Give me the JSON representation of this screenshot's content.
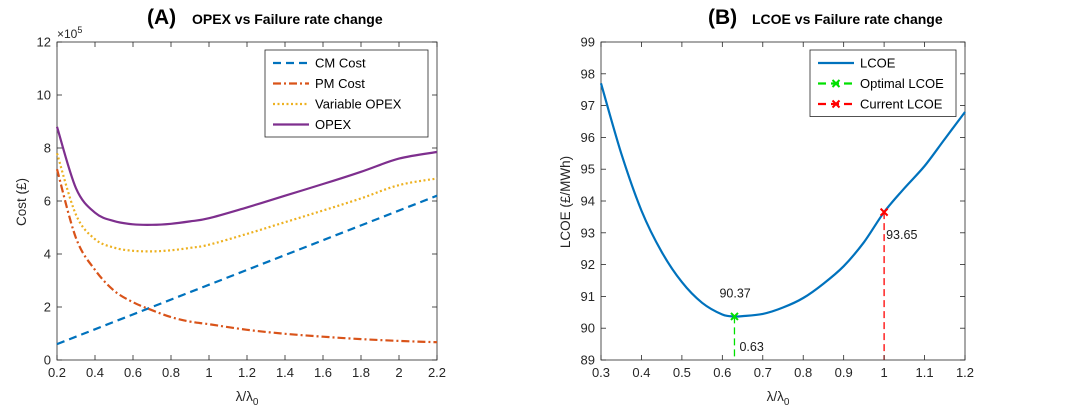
{
  "chart_data": [
    {
      "type": "line",
      "panel_label": "(A)",
      "title": "OPEX vs Failure rate change",
      "xlabel": "λ/λ0",
      "ylabel": "Cost (£)",
      "y_exponent_label": "×10^5",
      "xlim": [
        0.2,
        2.2
      ],
      "ylim": [
        0,
        12
      ],
      "xticks": [
        "0.2",
        "0.4",
        "0.6",
        "0.8",
        "1",
        "1.2",
        "1.4",
        "1.6",
        "1.8",
        "2",
        "2.2"
      ],
      "yticks": [
        "0",
        "2",
        "4",
        "6",
        "8",
        "10",
        "12"
      ],
      "legend_position": "top-right",
      "grid": false,
      "x": [
        0.2,
        0.3,
        0.4,
        0.5,
        0.6,
        0.7,
        0.8,
        0.9,
        1.0,
        1.2,
        1.4,
        1.6,
        1.8,
        2.0,
        2.2
      ],
      "series": [
        {
          "name": "CM Cost",
          "color": "#0072BD",
          "style": "dashed",
          "values": [
            0.6,
            0.88,
            1.16,
            1.44,
            1.72,
            2.0,
            2.28,
            2.56,
            2.84,
            3.4,
            3.96,
            4.52,
            5.08,
            5.64,
            6.2
          ]
        },
        {
          "name": "PM Cost",
          "color": "#D95319",
          "style": "dashdot",
          "values": [
            7.2,
            4.6,
            3.4,
            2.62,
            2.18,
            1.88,
            1.62,
            1.45,
            1.35,
            1.14,
            0.99,
            0.88,
            0.79,
            0.72,
            0.67
          ]
        },
        {
          "name": "Variable OPEX",
          "color": "#EDB120",
          "style": "dotted",
          "values": [
            7.8,
            5.48,
            4.56,
            4.24,
            4.12,
            4.1,
            4.14,
            4.23,
            4.35,
            4.76,
            5.2,
            5.64,
            6.1,
            6.6,
            6.85
          ]
        },
        {
          "name": "OPEX",
          "color": "#7E2F8E",
          "style": "solid",
          "values": [
            8.8,
            6.48,
            5.56,
            5.24,
            5.12,
            5.1,
            5.14,
            5.23,
            5.35,
            5.76,
            6.2,
            6.64,
            7.1,
            7.6,
            7.85
          ]
        }
      ]
    },
    {
      "type": "line",
      "panel_label": "(B)",
      "title": "LCOE vs Failure rate change",
      "xlabel": "λ/λ0",
      "ylabel": "LCOE (£/MWh)",
      "xlim": [
        0.3,
        1.2
      ],
      "ylim": [
        89,
        99
      ],
      "xticks": [
        "0.3",
        "0.4",
        "0.5",
        "0.6",
        "0.7",
        "0.8",
        "0.9",
        "1",
        "1.1",
        "1.2"
      ],
      "yticks": [
        "89",
        "90",
        "91",
        "92",
        "93",
        "94",
        "95",
        "96",
        "97",
        "98",
        "99"
      ],
      "legend_position": "top-right",
      "grid": false,
      "series": [
        {
          "name": "LCOE",
          "color": "#0072BD",
          "style": "solid",
          "x": [
            0.3,
            0.35,
            0.4,
            0.45,
            0.5,
            0.55,
            0.6,
            0.63,
            0.65,
            0.7,
            0.75,
            0.8,
            0.85,
            0.9,
            0.95,
            1.0,
            1.05,
            1.1,
            1.15,
            1.2
          ],
          "values": [
            97.7,
            95.5,
            93.7,
            92.4,
            91.45,
            90.8,
            90.43,
            90.37,
            90.38,
            90.45,
            90.65,
            90.95,
            91.4,
            91.95,
            92.7,
            93.65,
            94.4,
            95.1,
            95.95,
            96.8
          ]
        },
        {
          "name": "Optimal LCOE",
          "color": "#00E000",
          "style": "dashed-marker",
          "point": {
            "x": 0.63,
            "y": 90.37
          }
        },
        {
          "name": "Current LCOE",
          "color": "#FF0000",
          "style": "dashed-marker",
          "point": {
            "x": 1.0,
            "y": 93.65
          }
        }
      ],
      "annotations": [
        {
          "text": "90.37"
        },
        {
          "text": "0.63"
        },
        {
          "text": "93.65"
        }
      ]
    }
  ]
}
